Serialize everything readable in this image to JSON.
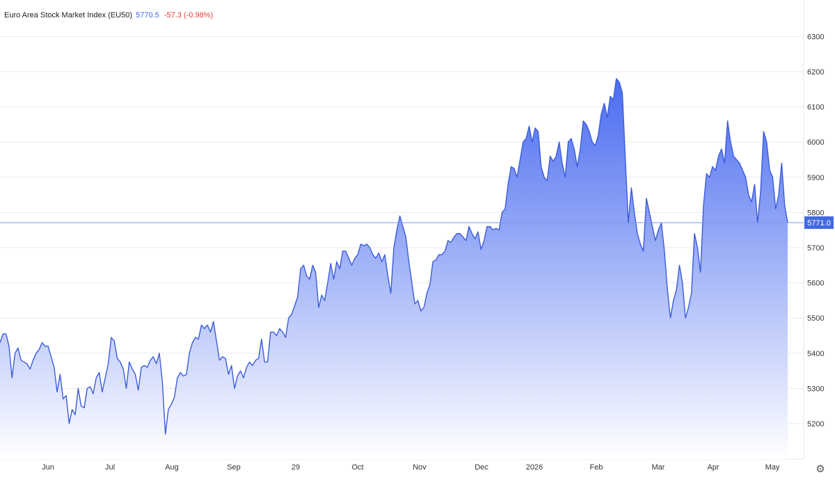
{
  "header": {
    "title": "Euro Area Stock Market Index (EU50)",
    "price": "5770.5",
    "change": "-57.3 (-0.98%)"
  },
  "colors": {
    "line": "#3b5bdb",
    "fill_top": "#4a6cf0",
    "fill_bottom": "#ffffff",
    "last_label_bg": "#4169e1",
    "change_negative": "#e0403a"
  },
  "icons": {
    "settings": "gear-icon"
  },
  "chart_data": {
    "type": "area",
    "title": "Euro Area Stock Market Index (EU50)",
    "ylim": [
      5100,
      6350
    ],
    "y_ticks": [
      5200,
      5300,
      5400,
      5500,
      5600,
      5700,
      5800,
      5900,
      6000,
      6100,
      6200,
      6300
    ],
    "x_ticks": [
      "Jun",
      "Jul",
      "Aug",
      "Sep",
      "29",
      "Oct",
      "Nov",
      "Dec",
      "2026",
      "Feb",
      "Mar",
      "Apr",
      "May"
    ],
    "grid": "horizontal",
    "last_value": 5771.0,
    "last_value_label": "5771.0",
    "series": [
      {
        "values": [
          5430,
          5455,
          5455,
          5420,
          5330,
          5400,
          5415,
          5380,
          5375,
          5370,
          5355,
          5380,
          5400,
          5410,
          5430,
          5420,
          5420,
          5390,
          5360,
          5290,
          5340,
          5270,
          5280,
          5200,
          5240,
          5225,
          5300,
          5250,
          5245,
          5300,
          5305,
          5285,
          5330,
          5345,
          5290,
          5330,
          5370,
          5445,
          5435,
          5385,
          5375,
          5355,
          5300,
          5375,
          5355,
          5340,
          5295,
          5360,
          5365,
          5360,
          5380,
          5390,
          5370,
          5400,
          5320,
          5170,
          5240,
          5255,
          5275,
          5330,
          5345,
          5335,
          5340,
          5400,
          5430,
          5445,
          5440,
          5480,
          5470,
          5480,
          5460,
          5490,
          5435,
          5380,
          5390,
          5385,
          5340,
          5365,
          5300,
          5335,
          5350,
          5330,
          5360,
          5375,
          5365,
          5380,
          5385,
          5440,
          5375,
          5375,
          5460,
          5460,
          5450,
          5470,
          5460,
          5445,
          5500,
          5510,
          5535,
          5560,
          5640,
          5650,
          5620,
          5610,
          5650,
          5630,
          5530,
          5565,
          5550,
          5600,
          5655,
          5610,
          5660,
          5640,
          5690,
          5690,
          5670,
          5650,
          5670,
          5680,
          5710,
          5705,
          5710,
          5700,
          5680,
          5670,
          5685,
          5660,
          5680,
          5620,
          5570,
          5700,
          5750,
          5790,
          5760,
          5730,
          5660,
          5600,
          5540,
          5550,
          5520,
          5530,
          5570,
          5595,
          5660,
          5665,
          5680,
          5680,
          5690,
          5720,
          5715,
          5730,
          5740,
          5740,
          5730,
          5720,
          5760,
          5740,
          5725,
          5745,
          5695,
          5720,
          5760,
          5760,
          5750,
          5755,
          5750,
          5800,
          5810,
          5880,
          5930,
          5925,
          5900,
          5950,
          6000,
          6010,
          6045,
          6000,
          6040,
          6030,
          5930,
          5900,
          5890,
          5960,
          5945,
          5960,
          6000,
          5940,
          5900,
          6000,
          6010,
          5980,
          5930,
          5980,
          6060,
          6050,
          6030,
          6000,
          5990,
          6020,
          6080,
          6110,
          6070,
          6130,
          6120,
          6180,
          6170,
          6140,
          5950,
          5770,
          5870,
          5800,
          5740,
          5710,
          5690,
          5840,
          5800,
          5760,
          5720,
          5750,
          5770,
          5690,
          5580,
          5500,
          5550,
          5580,
          5650,
          5600,
          5500,
          5530,
          5570,
          5740,
          5700,
          5630,
          5820,
          5910,
          5900,
          5930,
          5920,
          5960,
          5980,
          5940,
          6060,
          6000,
          5960,
          5950,
          5940,
          5920,
          5900,
          5850,
          5830,
          5880,
          5770,
          5860,
          6030,
          6000,
          5920,
          5900,
          5810,
          5850,
          5940,
          5820,
          5771
        ]
      }
    ]
  }
}
